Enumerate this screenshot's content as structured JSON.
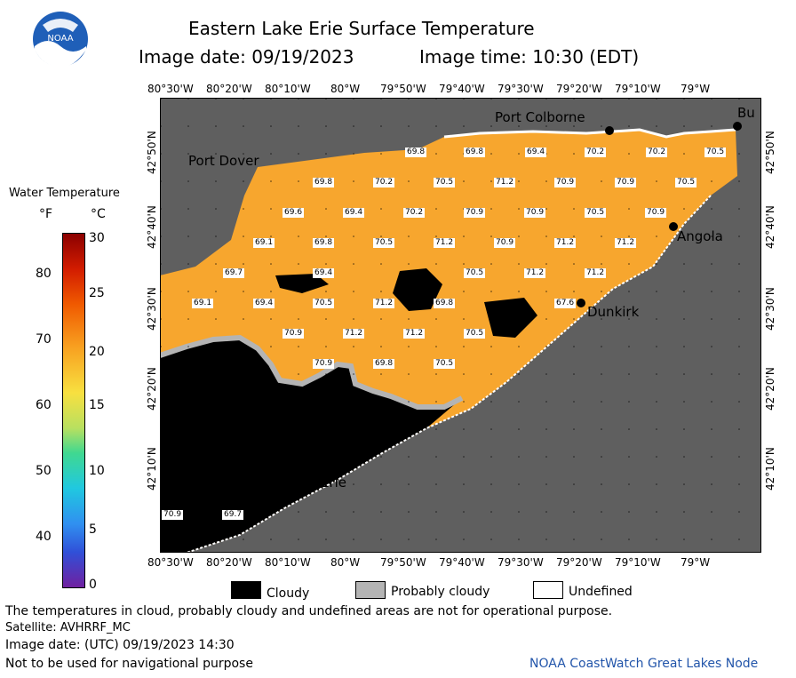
{
  "header": {
    "title": "Eastern Lake Erie Surface Temperature",
    "image_date": "Image date: 09/19/2023",
    "image_time": "Image time: 10:30 (EDT)",
    "logo_text": "NOAA"
  },
  "colorbar": {
    "title": "Water Temperature",
    "unit_f": "°F",
    "unit_c": "°C",
    "f_ticks": [
      "80",
      "70",
      "60",
      "50",
      "40"
    ],
    "c_ticks": [
      "30",
      "25",
      "20",
      "15",
      "10",
      "5",
      "0"
    ]
  },
  "axes": {
    "lon_ticks": [
      "80°30'W",
      "80°20'W",
      "80°10'W",
      "80°W",
      "79°50'W",
      "79°40'W",
      "79°30'W",
      "79°20'W",
      "79°10'W",
      "79°W"
    ],
    "lat_ticks": [
      "42°50'N",
      "42°40'N",
      "42°30'N",
      "42°20'N",
      "42°10'N"
    ]
  },
  "places": [
    {
      "name": "Port Colborne"
    },
    {
      "name": "Port Dover"
    },
    {
      "name": "Bu"
    },
    {
      "name": "Angola"
    },
    {
      "name": "Dunkirk"
    },
    {
      "name": "Erie"
    }
  ],
  "temperature_labels": [
    "69.8",
    "69.8",
    "69.4",
    "70.2",
    "70.2",
    "70.5",
    "69.8",
    "70.2",
    "70.5",
    "71.2",
    "70.9",
    "70.9",
    "70.5",
    "69.6",
    "69.4",
    "70.2",
    "70.9",
    "70.9",
    "70.5",
    "70.9",
    "69.1",
    "69.8",
    "70.5",
    "71.2",
    "70.9",
    "71.2",
    "71.2",
    "69.7",
    "69.4",
    "70.5",
    "71.2",
    "71.2",
    "69.1",
    "69.4",
    "70.5",
    "71.2",
    "69.8",
    "67.6",
    "70.9",
    "71.2",
    "71.2",
    "70.5",
    "70.9",
    "69.8",
    "70.5",
    "70.9",
    "69.7"
  ],
  "legend": {
    "cloudy": "Cloudy",
    "probably_cloudy": "Probably cloudy",
    "undefined": "Undefined"
  },
  "footer": {
    "disclaimer": "The temperatures in cloud, probably cloudy and undefined areas are not for operational purpose.",
    "satellite": "Satellite: AVHRRF_MC",
    "utc_date": "Image date: (UTC) 09/19/2023  14:30",
    "nav_warning": "Not to be used for navigational purpose",
    "credit": "NOAA CoastWatch Great Lakes Node"
  },
  "colors": {
    "land": "#5f5f5f",
    "water_warm": "#f7a62e",
    "cloud": "#000000",
    "probably_cloudy": "#b4b4b4",
    "undefined": "#ffffff",
    "credit_text": "#2255aa"
  }
}
